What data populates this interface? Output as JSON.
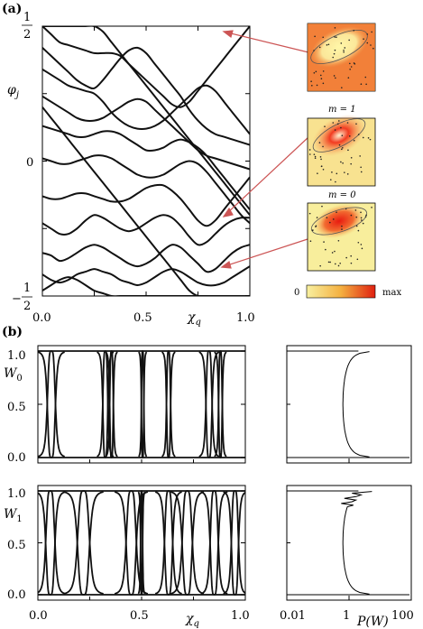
{
  "panel_labels": {
    "a": "(a)",
    "b": "(b)"
  },
  "chart_data": [
    {
      "type": "line",
      "panel": "a",
      "xlabel": "χq",
      "ylabel": "φj",
      "xlim": [
        0,
        1
      ],
      "ylim": [
        -0.5,
        0.5
      ],
      "x_ticks": [
        "0.0",
        "0.5",
        "1.0"
      ],
      "y_ticks": {
        "top_num": "1",
        "top_den": "2",
        "zero": "0",
        "bottom_sign": "−",
        "bottom_num": "1",
        "bottom_den": "2"
      },
      "bands": [
        [
          0.5,
          0.47,
          0.44,
          0.43,
          0.42,
          0.41,
          0.4,
          0.4,
          0.4,
          0.39,
          0.36,
          0.33,
          0.3,
          0.27,
          0.24,
          0.21,
          0.2,
          0.22,
          0.26,
          0.3,
          0.34,
          0.38,
          0.42,
          0.46,
          0.5
        ],
        [
          0.42,
          0.39,
          0.36,
          0.33,
          0.3,
          0.28,
          0.27,
          0.3,
          0.34,
          0.38,
          0.41,
          0.42,
          0.4,
          0.36,
          0.32,
          0.28,
          0.24,
          0.19,
          0.15,
          0.12,
          0.1,
          0.09,
          0.08,
          0.07,
          0.06
        ],
        [
          0.34,
          0.32,
          0.3,
          0.28,
          0.27,
          0.26,
          0.25,
          0.22,
          0.18,
          0.15,
          0.13,
          0.12,
          0.12,
          0.13,
          0.15,
          0.18,
          0.21,
          0.24,
          0.27,
          0.28,
          0.26,
          0.22,
          0.18,
          0.14,
          0.1
        ],
        [
          0.24,
          0.22,
          0.2,
          0.18,
          0.16,
          0.15,
          0.15,
          0.16,
          0.18,
          0.2,
          0.22,
          0.23,
          0.22,
          0.19,
          0.16,
          0.13,
          0.1,
          0.07,
          0.04,
          0.02,
          0.01,
          0.0,
          -0.01,
          -0.02,
          -0.03
        ],
        [
          0.13,
          0.12,
          0.11,
          0.1,
          0.09,
          0.09,
          0.1,
          0.11,
          0.11,
          0.1,
          0.08,
          0.06,
          0.04,
          0.04,
          0.05,
          0.07,
          0.08,
          0.07,
          0.05,
          0.02,
          -0.02,
          -0.06,
          -0.1,
          -0.14,
          -0.18
        ],
        [
          0.01,
          0.0,
          -0.01,
          -0.01,
          0.0,
          0.01,
          0.02,
          0.02,
          0.01,
          -0.01,
          -0.03,
          -0.05,
          -0.06,
          -0.06,
          -0.05,
          -0.03,
          -0.01,
          0.0,
          -0.01,
          -0.04,
          -0.08,
          -0.12,
          -0.16,
          -0.2,
          -0.23
        ],
        [
          -0.13,
          -0.14,
          -0.14,
          -0.13,
          -0.12,
          -0.12,
          -0.13,
          -0.14,
          -0.15,
          -0.15,
          -0.14,
          -0.12,
          -0.1,
          -0.09,
          -0.09,
          -0.11,
          -0.14,
          -0.18,
          -0.22,
          -0.24,
          -0.22,
          -0.18,
          -0.14,
          -0.1,
          -0.06
        ],
        [
          -0.23,
          -0.25,
          -0.27,
          -0.27,
          -0.25,
          -0.22,
          -0.2,
          -0.21,
          -0.23,
          -0.25,
          -0.26,
          -0.25,
          -0.23,
          -0.21,
          -0.2,
          -0.21,
          -0.24,
          -0.28,
          -0.31,
          -0.3,
          -0.27,
          -0.24,
          -0.22,
          -0.21,
          -0.21
        ],
        [
          -0.34,
          -0.35,
          -0.37,
          -0.36,
          -0.34,
          -0.32,
          -0.31,
          -0.32,
          -0.34,
          -0.36,
          -0.38,
          -0.39,
          -0.38,
          -0.36,
          -0.33,
          -0.31,
          -0.32,
          -0.35,
          -0.38,
          -0.41,
          -0.4,
          -0.37,
          -0.34,
          -0.32,
          -0.31
        ],
        [
          -0.42,
          -0.44,
          -0.45,
          -0.44,
          -0.42,
          -0.41,
          -0.4,
          -0.41,
          -0.42,
          -0.44,
          -0.45,
          -0.46,
          -0.45,
          -0.43,
          -0.41,
          -0.4,
          -0.41,
          -0.43,
          -0.45,
          -0.46,
          -0.46,
          -0.45,
          -0.43,
          -0.41,
          -0.39
        ],
        [
          -0.48,
          -0.46,
          -0.44,
          -0.43,
          -0.44,
          -0.46,
          -0.48,
          -0.49,
          -0.5,
          -0.5,
          -0.5,
          -0.5,
          -0.5,
          -0.5,
          -0.5,
          -0.5,
          -0.5,
          -0.5,
          -0.5,
          -0.5,
          -0.5,
          -0.5,
          -0.5,
          -0.5,
          -0.5
        ],
        [
          0.2,
          0.16,
          0.12,
          0.08,
          0.04,
          0.0,
          -0.04,
          -0.08,
          -0.12,
          -0.16,
          -0.2,
          -0.24,
          -0.28,
          -0.32,
          -0.36,
          -0.4,
          -0.44,
          -0.48,
          -0.5,
          -0.5,
          -0.5,
          -0.5,
          -0.5,
          -0.5,
          -0.5
        ],
        [
          0.5,
          0.5,
          0.5,
          0.5,
          0.5,
          0.5,
          0.5,
          0.48,
          0.44,
          0.4,
          0.36,
          0.32,
          0.28,
          0.24,
          0.2,
          0.16,
          0.12,
          0.08,
          0.04,
          0.0,
          -0.04,
          -0.08,
          -0.12,
          -0.16,
          -0.2
        ]
      ],
      "insets": [
        {
          "label": ""
        },
        {
          "label": "m = 1"
        },
        {
          "label": "m = 0"
        }
      ],
      "colorbar": {
        "min_label": "0",
        "max_label": "max",
        "colors": [
          "#f8f0a0",
          "#f4b040",
          "#e02010"
        ]
      }
    },
    {
      "type": "line",
      "panel": "b",
      "rows": [
        {
          "ylabel": "W0",
          "sub": "0",
          "ylim": [
            0,
            1
          ],
          "y_ticks": [
            "0.0",
            "0.5",
            "1.0"
          ],
          "x_ticks": [],
          "dips": [
            {
              "center": 0.065,
              "width": 0.04
            },
            {
              "center": 0.325,
              "width": 0.025
            },
            {
              "center": 0.355,
              "width": 0.018
            },
            {
              "center": 0.505,
              "width": 0.012
            },
            {
              "center": 0.63,
              "width": 0.02
            },
            {
              "center": 0.825,
              "width": 0.03
            },
            {
              "center": 0.88,
              "width": 0.018
            }
          ],
          "distribution": {
            "xlim_log": [
              -2,
              2
            ],
            "x_ticks": []
          }
        },
        {
          "ylabel": "W1",
          "sub": "1",
          "ylim": [
            0,
            1
          ],
          "y_ticks": [
            "0.0",
            "0.5",
            "1.0"
          ],
          "xlabel": "χq",
          "x_ticks": [
            "0.0",
            "0.5",
            "1.0"
          ],
          "dips": [
            {
              "center": 0.06,
              "width": 0.045
            },
            {
              "center": 0.22,
              "width": 0.06
            },
            {
              "center": 0.45,
              "width": 0.05
            },
            {
              "center": 0.5,
              "width": 0.01
            },
            {
              "center": 0.63,
              "width": 0.04
            },
            {
              "center": 0.72,
              "width": 0.05
            },
            {
              "center": 0.85,
              "width": 0.04
            },
            {
              "center": 0.95,
              "width": 0.035
            }
          ],
          "distribution": {
            "xlabel": "P(W)",
            "xlim_log": [
              -2,
              2
            ],
            "x_ticks": [
              "0.01",
              "1",
              "100"
            ]
          }
        }
      ]
    }
  ]
}
